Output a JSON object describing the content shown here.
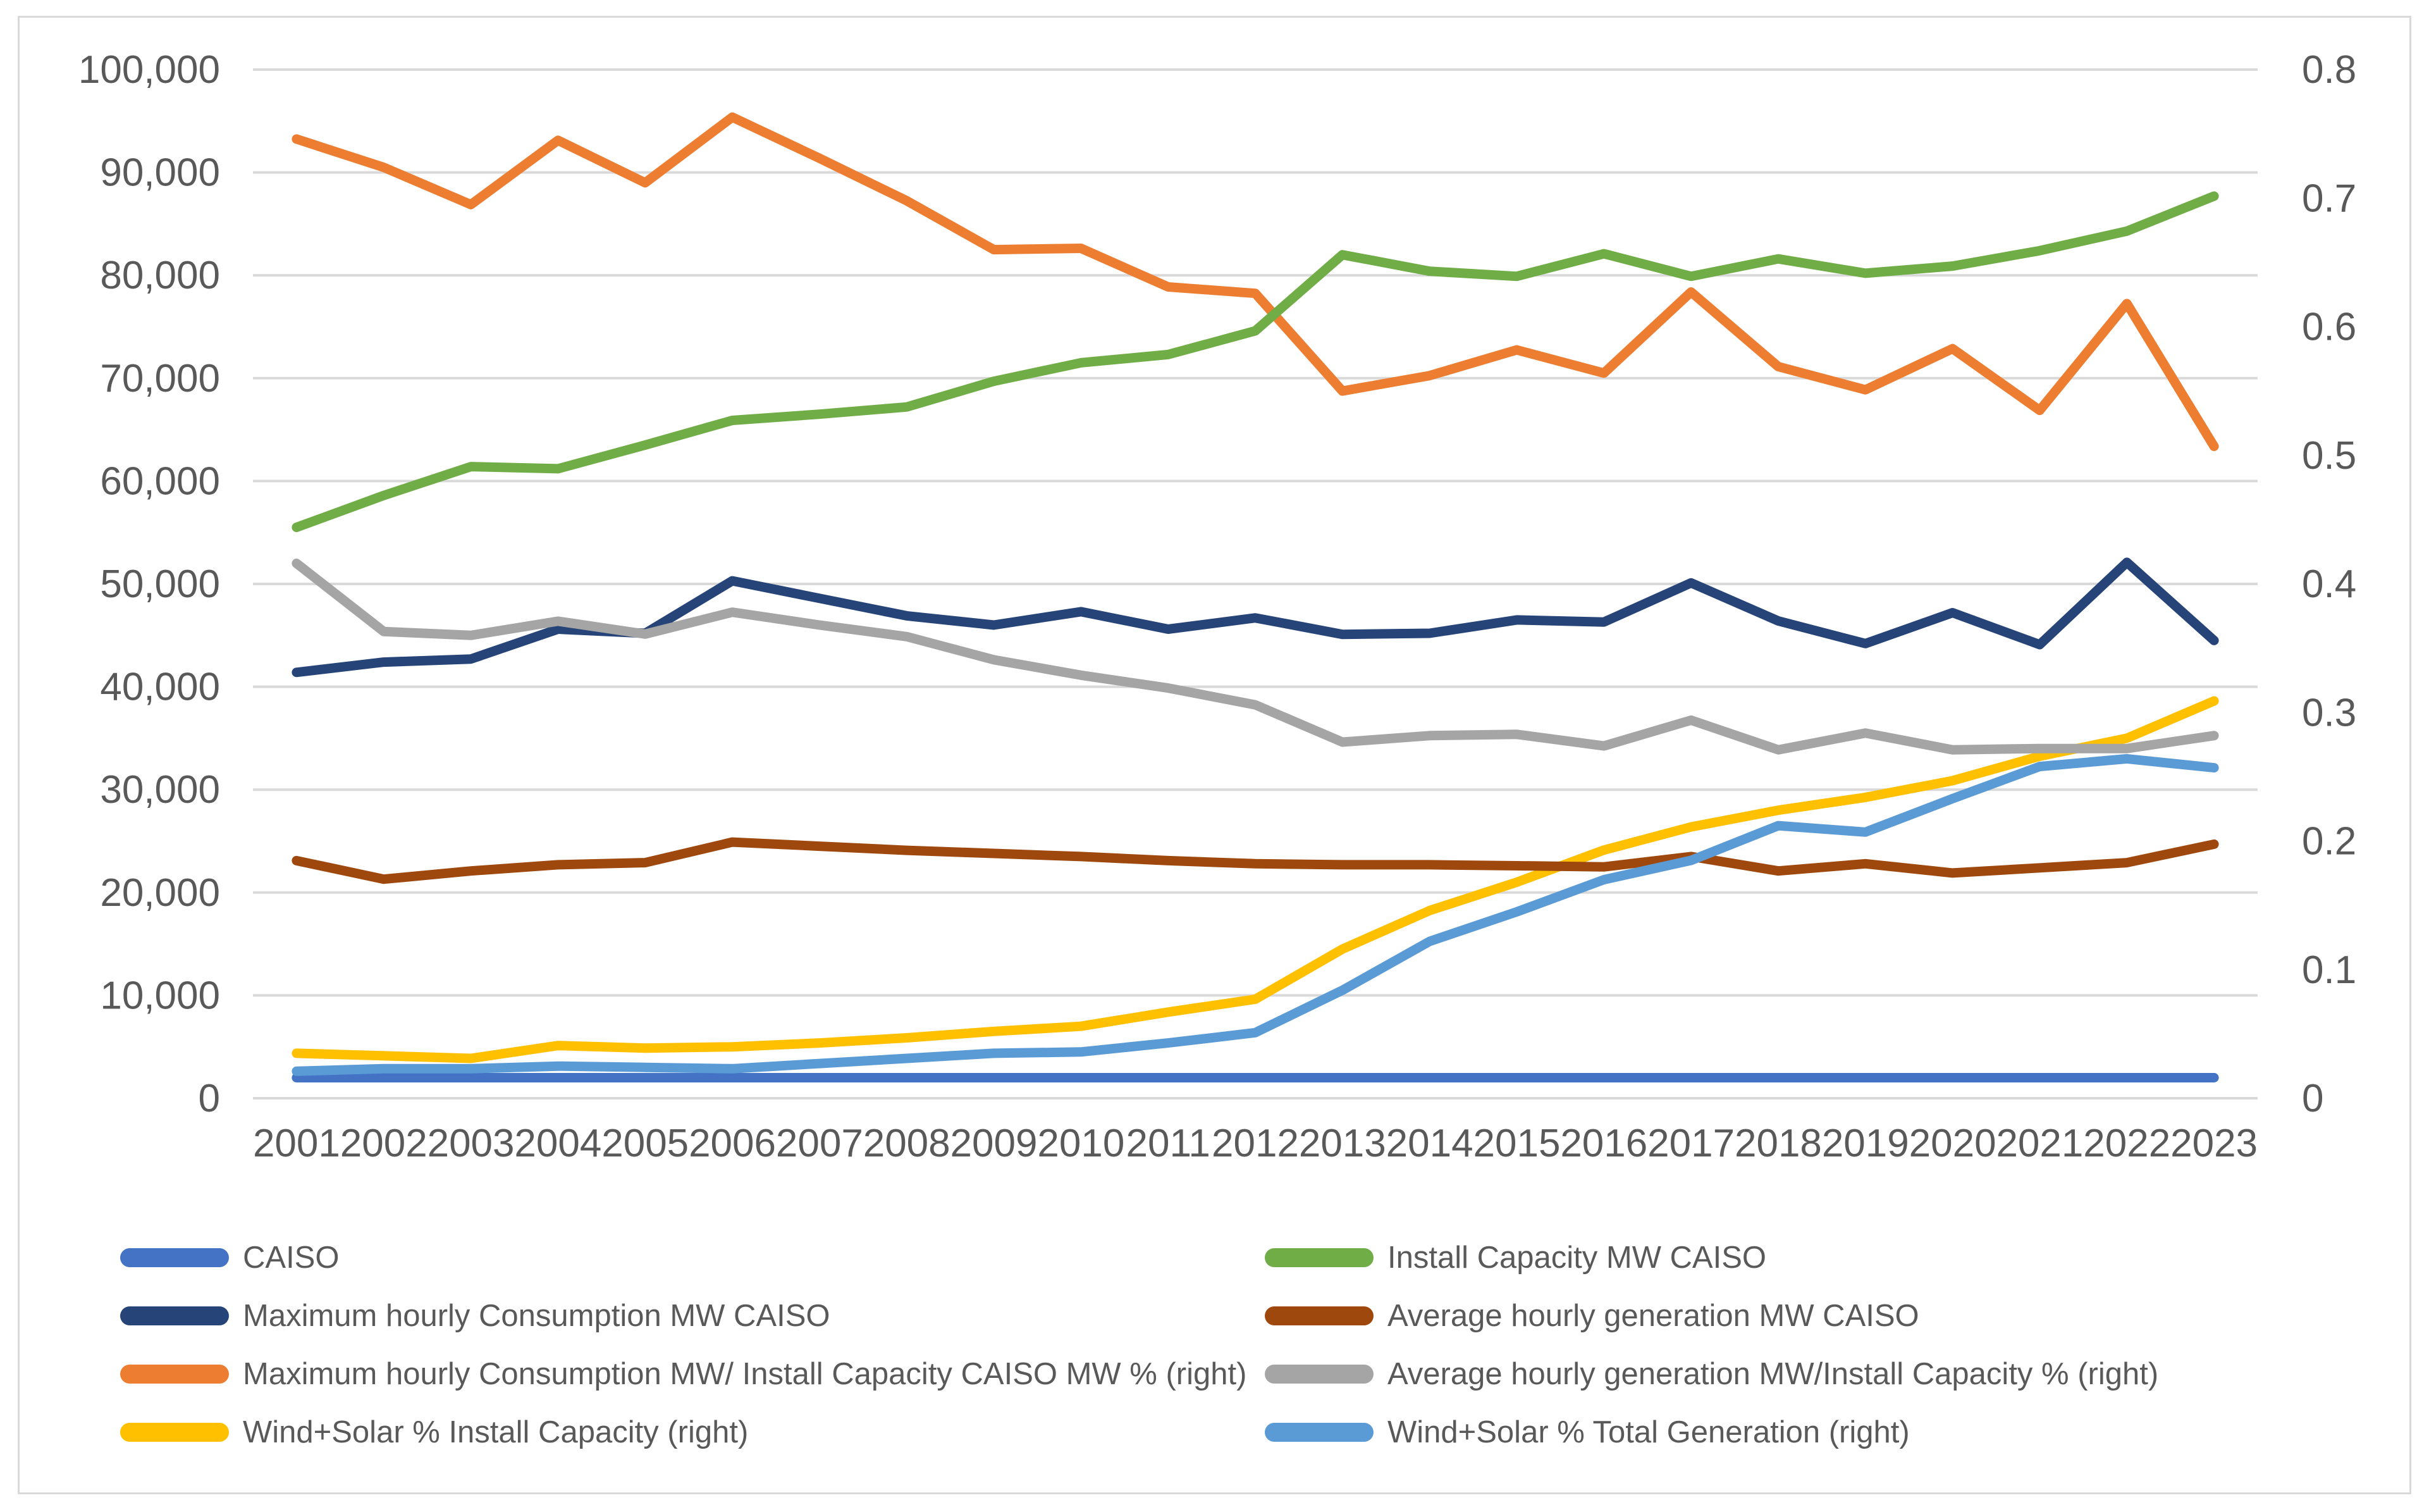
{
  "chart_data": {
    "type": "line",
    "title": "",
    "grid": true,
    "legend_position": "bottom-two-columns",
    "categories": [
      "2001",
      "2002",
      "2003",
      "2004",
      "2005",
      "2006",
      "2007",
      "2008",
      "2009",
      "2010",
      "2011",
      "2012",
      "2013",
      "2014",
      "2015",
      "2016",
      "2017",
      "2018",
      "2019",
      "2020",
      "2021",
      "2022",
      "2023"
    ],
    "left_axis": {
      "min": 0,
      "max": 100000,
      "tick_step": 10000,
      "tick_labels": [
        "0",
        "10,000",
        "20,000",
        "30,000",
        "40,000",
        "50,000",
        "60,000",
        "70,000",
        "80,000",
        "90,000",
        "100,000"
      ]
    },
    "right_axis": {
      "min": 0,
      "max": 0.8,
      "tick_step": 0.1,
      "tick_labels": [
        "0",
        "0.1",
        "0.2",
        "0.3",
        "0.4",
        "0.5",
        "0.6",
        "0.7",
        "0.8"
      ]
    },
    "colors": {
      "axis_text": "#595959",
      "gridline": "#D9D9D9",
      "frame_border": "#D9D9D9"
    },
    "series": [
      {
        "key": "caiso",
        "name": "CAISO",
        "axis": "left",
        "color": "#4472C4",
        "values": [
          2000,
          2000,
          2000,
          2000,
          2000,
          2000,
          2000,
          2000,
          2000,
          2000,
          2000,
          2000,
          2000,
          2000,
          2000,
          2000,
          2000,
          2000,
          2000,
          2000,
          2000,
          2000,
          2000
        ]
      },
      {
        "key": "max-hourly-consumption-mw",
        "name": "Maximum hourly Consumption MW CAISO",
        "axis": "left",
        "color": "#264478",
        "values": [
          41400,
          42400,
          42700,
          45600,
          45200,
          50300,
          48600,
          46900,
          46000,
          47300,
          45600,
          46700,
          45100,
          45200,
          46500,
          46300,
          50100,
          46400,
          44200,
          47200,
          44100,
          52100,
          44500
        ]
      },
      {
        "key": "max-consumption-per-install-capacity",
        "name": "Maximum hourly Consumption MW/ Install Capacity CAISO MW  % (right)",
        "axis": "right",
        "color": "#ED7D31",
        "values": [
          0.746,
          0.724,
          0.695,
          0.745,
          0.712,
          0.763,
          0.731,
          0.698,
          0.66,
          0.661,
          0.631,
          0.626,
          0.55,
          0.562,
          0.582,
          0.564,
          0.627,
          0.569,
          0.551,
          0.583,
          0.535,
          0.618,
          0.507
        ]
      },
      {
        "key": "wind-solar-pct-install-capacity",
        "name": "Wind+Solar % Install Capacity (right)",
        "axis": "right",
        "color": "#FFC000",
        "values": [
          0.035,
          0.033,
          0.031,
          0.041,
          0.039,
          0.04,
          0.043,
          0.047,
          0.052,
          0.056,
          0.067,
          0.077,
          0.116,
          0.146,
          0.168,
          0.193,
          0.211,
          0.224,
          0.234,
          0.247,
          0.266,
          0.28,
          0.309
        ]
      },
      {
        "key": "install-capacity-mw",
        "name": "Install Capacity MW CAISO",
        "axis": "left",
        "color": "#70AD47",
        "values": [
          55500,
          58600,
          61400,
          61200,
          63500,
          65900,
          66500,
          67200,
          69700,
          71500,
          72300,
          74600,
          82000,
          80400,
          79900,
          82100,
          79900,
          81600,
          80200,
          80900,
          82400,
          84300,
          87700
        ]
      },
      {
        "key": "avg-hourly-generation-mw",
        "name": "Average hourly generation MW CAISO",
        "axis": "left",
        "color": "#9E480E",
        "values": [
          23100,
          21300,
          22100,
          22700,
          22900,
          24900,
          24500,
          24100,
          23800,
          23500,
          23100,
          22800,
          22700,
          22700,
          22600,
          22500,
          23500,
          22100,
          22800,
          21900,
          22400,
          22900,
          24700
        ]
      },
      {
        "key": "avg-generation-per-install-capacity",
        "name": "Average hourly generation MW/Install Capacity  % (right)",
        "axis": "right",
        "color": "#A5A5A5",
        "values": [
          0.416,
          0.363,
          0.36,
          0.371,
          0.361,
          0.378,
          0.368,
          0.359,
          0.341,
          0.329,
          0.319,
          0.306,
          0.277,
          0.282,
          0.283,
          0.274,
          0.294,
          0.271,
          0.284,
          0.271,
          0.272,
          0.272,
          0.282
        ]
      },
      {
        "key": "wind-solar-pct-total-generation",
        "name": "Wind+Solar  % Total Generation (right)",
        "axis": "right",
        "color": "#5B9BD5",
        "values": [
          0.021,
          0.023,
          0.023,
          0.025,
          0.024,
          0.023,
          0.027,
          0.031,
          0.035,
          0.036,
          0.043,
          0.051,
          0.084,
          0.122,
          0.145,
          0.17,
          0.185,
          0.212,
          0.207,
          0.233,
          0.258,
          0.264,
          0.257
        ]
      }
    ],
    "legend_columns": [
      [
        0,
        1,
        2,
        3
      ],
      [
        4,
        5,
        6,
        7
      ]
    ]
  }
}
